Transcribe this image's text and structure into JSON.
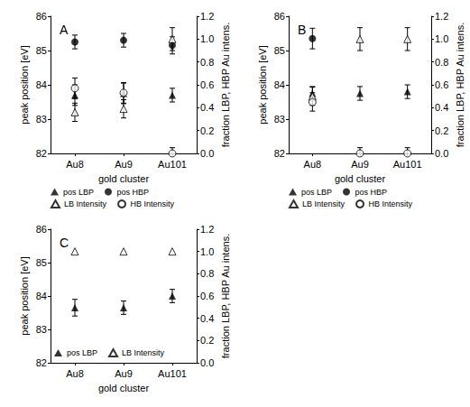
{
  "chart_data": [
    {
      "type": "scatter",
      "title": "A",
      "xlabel": "gold cluster",
      "ylabel": "peak position [eV]",
      "y2label": "fraction LBP, HBP Au intens.",
      "categories": [
        "Au8",
        "Au9",
        "Au101"
      ],
      "ylim": [
        82,
        86
      ],
      "yticks": [
        82,
        83,
        84,
        85,
        86
      ],
      "y2lim": [
        0,
        1.2
      ],
      "y2ticks": [
        {
          "value": 0,
          "label": "0.0"
        },
        0.2,
        0.4,
        0.6,
        0.8,
        {
          "value": 1,
          "label": "1.0"
        },
        1.2
      ],
      "legend": "below",
      "series": [
        {
          "name": "pos LBP",
          "axis": "y",
          "marker": "triangle",
          "color": "#000000",
          "values": [
            83.7,
            83.75,
            83.7
          ],
          "errors": [
            0.3,
            0.3,
            0.2
          ]
        },
        {
          "name": "pos HBP",
          "axis": "y",
          "marker": "circle",
          "color": "#000000",
          "values": [
            85.25,
            85.3,
            85.15
          ],
          "errors": [
            0.2,
            0.2,
            0.25
          ]
        },
        {
          "name": "LB Intensity",
          "axis": "y2",
          "marker": "open_triangle",
          "color": "#000000",
          "values": [
            0.36,
            0.39,
            1.0
          ],
          "errors": [
            0.08,
            0.08,
            0.1
          ]
        },
        {
          "name": "HB Intensity",
          "axis": "y2",
          "marker": "open_circle",
          "color": "#000000",
          "values": [
            0.57,
            0.53,
            0.0
          ],
          "errors": [
            0.09,
            0.09,
            0.05
          ]
        }
      ]
    },
    {
      "type": "scatter",
      "title": "B",
      "xlabel": "gold cluster",
      "ylabel": "peak position [eV]",
      "y2label": "fraction LBP, HBP Au intens.",
      "categories": [
        "Au8",
        "Au9",
        "Au101"
      ],
      "ylim": [
        82,
        86
      ],
      "yticks": [
        82,
        83,
        84,
        85,
        86
      ],
      "y2lim": [
        0,
        1.2
      ],
      "y2ticks": [
        {
          "value": 0,
          "label": "0.0"
        },
        0.2,
        0.4,
        0.6,
        0.8,
        {
          "value": 1,
          "label": "1.0"
        },
        1.2
      ],
      "legend": "below",
      "series": [
        {
          "name": "pos LBP",
          "axis": "y",
          "marker": "triangle",
          "color": "#000000",
          "values": [
            83.75,
            83.75,
            83.8
          ],
          "errors": [
            0.2,
            0.2,
            0.2
          ]
        },
        {
          "name": "pos HBP",
          "axis": "y",
          "marker": "circle",
          "color": "#000000",
          "values": [
            85.35,
            null,
            null
          ],
          "errors": [
            0.3,
            null,
            null
          ]
        },
        {
          "name": "LB Intensity",
          "axis": "y2",
          "marker": "open_triangle",
          "color": "#000000",
          "values": [
            0.5,
            1.0,
            1.0
          ],
          "errors": [
            0.08,
            0.1,
            0.1
          ]
        },
        {
          "name": "HB Intensity",
          "axis": "y2",
          "marker": "open_circle",
          "color": "#000000",
          "values": [
            0.45,
            0.0,
            0.0
          ],
          "errors": [
            0.08,
            0.05,
            0.05
          ]
        }
      ]
    },
    {
      "type": "scatter",
      "title": "C",
      "xlabel": "gold cluster",
      "ylabel": "peak position [eV]",
      "y2label": "fraction LBP, HBP Au intens.",
      "categories": [
        "Au8",
        "Au9",
        "Au101"
      ],
      "ylim": [
        82,
        86
      ],
      "yticks": [
        82,
        83,
        84,
        85,
        86
      ],
      "y2lim": [
        0,
        1.2
      ],
      "y2ticks": [
        {
          "value": 0,
          "label": "0.0"
        },
        0.2,
        0.4,
        0.6,
        0.8,
        {
          "value": 1,
          "label": "1.0"
        },
        1.2
      ],
      "legend": "lower left",
      "series": [
        {
          "name": "pos LBP",
          "axis": "y",
          "marker": "triangle",
          "color": "#000000",
          "values": [
            83.65,
            83.65,
            84.0
          ],
          "errors": [
            0.25,
            0.2,
            0.2
          ]
        },
        {
          "name": "LB Intensity",
          "axis": "y2",
          "marker": "open_triangle",
          "color": "#000000",
          "values": [
            1.0,
            1.0,
            1.0
          ]
        }
      ]
    }
  ]
}
